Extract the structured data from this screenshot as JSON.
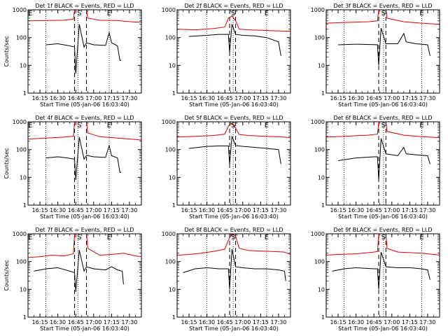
{
  "figure": {
    "background": "#ffffff",
    "axis_color": "#000000",
    "events_color": "#000000",
    "lld_color": "#e00000"
  },
  "chart_data": [
    {
      "type": "line",
      "title": "Det 1f BLACK = Events, RED = LLD",
      "xlabel": "Start Time (05-Jan-06 16:03:40)",
      "ylabel": "Counts/sec",
      "xlim": [
        "16:05",
        "17:40"
      ],
      "ylim": [
        1,
        1000
      ],
      "yscale": "log",
      "x_ticks": [
        "16:15",
        "16:30",
        "16:45",
        "17:00",
        "17:15",
        "17:30"
      ],
      "y_ticks": [
        "1",
        "10",
        "100",
        "1000"
      ],
      "markers": [
        {
          "label": "E",
          "time": "16:07"
        },
        {
          "label": "S",
          "time": "16:48"
        },
        {
          "label": "E",
          "time": "17:13"
        }
      ],
      "dotted_lines": [
        "16:20",
        "16:47",
        "17:13"
      ],
      "dashed_lines": [
        "16:44",
        "16:54"
      ],
      "series": [
        {
          "color": "#e00000",
          "x": [
            "16:05",
            "16:20",
            "16:35",
            "16:43",
            "16:44",
            "16:48",
            "16:54",
            "16:55",
            "17:05",
            "17:20",
            "17:35",
            "17:40"
          ],
          "y": [
            400,
            410,
            420,
            460,
            1000,
            1000,
            1000,
            500,
            420,
            410,
            360,
            360
          ]
        },
        {
          "color": "#000000",
          "x": [
            "16:20",
            "16:30",
            "16:38",
            "16:44",
            "16:45",
            "16:48",
            "16:52",
            "16:54",
            "17:00",
            "17:10",
            "17:13",
            "17:15",
            "17:20",
            "17:22",
            "17:23"
          ],
          "y": [
            55,
            60,
            52,
            46,
            5,
            300,
            45,
            65,
            55,
            52,
            150,
            65,
            50,
            15,
            15
          ]
        }
      ]
    },
    {
      "type": "line",
      "title": "Det 2f BLACK = Events, RED = LLD",
      "xlabel": "Start Time (05-Jan-06 16:03:40)",
      "ylabel": "",
      "xlim": [
        "16:05",
        "17:40"
      ],
      "ylim": [
        1,
        1000
      ],
      "yscale": "log",
      "x_ticks": [
        "16:15",
        "16:30",
        "16:45",
        "17:00",
        "17:15",
        "17:30"
      ],
      "y_ticks": [
        "1",
        "10",
        "100",
        "1000"
      ],
      "markers": [
        {
          "label": "S",
          "time": "16:52"
        },
        {
          "label": "E",
          "time": "17:20"
        }
      ],
      "dotted_lines": [
        "16:30",
        "16:52",
        "17:20"
      ],
      "dashed_lines": [
        "16:49",
        "16:54"
      ],
      "series": [
        {
          "color": "#e00000",
          "x": [
            "16:05",
            "16:20",
            "16:35",
            "16:45",
            "16:48",
            "16:51",
            "16:54",
            "16:57",
            "17:05",
            "17:20",
            "17:35",
            "17:40"
          ],
          "y": [
            200,
            190,
            210,
            240,
            500,
            600,
            400,
            200,
            190,
            180,
            170,
            170
          ]
        },
        {
          "color": "#000000",
          "x": [
            "16:15",
            "16:30",
            "16:40",
            "16:48",
            "16:49",
            "16:51",
            "16:54",
            "17:00",
            "17:10",
            "17:20",
            "17:30",
            "17:32"
          ],
          "y": [
            110,
            120,
            130,
            130,
            30,
            300,
            130,
            120,
            115,
            100,
            70,
            22
          ]
        }
      ]
    },
    {
      "type": "line",
      "title": "Det 3f BLACK = Events, RED = LLD",
      "xlabel": "Start Time (05-Jan-06 16:03:40)",
      "ylabel": "",
      "xlim": [
        "16:05",
        "17:40"
      ],
      "ylim": [
        1,
        1000
      ],
      "yscale": "log",
      "x_ticks": [
        "16:15",
        "16:30",
        "16:45",
        "17:00",
        "17:15",
        "17:30"
      ],
      "y_ticks": [
        "1",
        "10",
        "100",
        "1000"
      ],
      "markers": [
        {
          "label": "S",
          "time": "16:53"
        },
        {
          "label": "E",
          "time": "17:25"
        }
      ],
      "dotted_lines": [
        "16:20",
        "16:53",
        "17:25"
      ],
      "dashed_lines": [
        "16:49",
        "16:55"
      ],
      "series": [
        {
          "color": "#e00000",
          "x": [
            "16:05",
            "16:20",
            "16:40",
            "16:48",
            "16:49",
            "16:53",
            "16:55",
            "16:56",
            "17:10",
            "17:25",
            "17:40"
          ],
          "y": [
            330,
            350,
            370,
            400,
            1000,
            1000,
            1000,
            500,
            370,
            330,
            300
          ]
        },
        {
          "color": "#000000",
          "x": [
            "16:15",
            "16:30",
            "16:45",
            "16:48",
            "16:49",
            "16:51",
            "16:55",
            "17:05",
            "17:10",
            "17:12",
            "17:20",
            "17:30",
            "17:32"
          ],
          "y": [
            55,
            58,
            56,
            55,
            10,
            220,
            60,
            60,
            140,
            70,
            60,
            55,
            22
          ]
        }
      ]
    },
    {
      "type": "line",
      "title": "Det 4f BLACK = Events, RED = LLD",
      "xlabel": "Start Time (05-Jan-06 16:03:40)",
      "ylabel": "Counts/sec",
      "xlim": [
        "16:05",
        "17:40"
      ],
      "ylim": [
        1,
        1000
      ],
      "yscale": "log",
      "x_ticks": [
        "16:15",
        "16:30",
        "16:45",
        "17:00",
        "17:15",
        "17:30"
      ],
      "y_ticks": [
        "1",
        "10",
        "100",
        "1000"
      ],
      "markers": [
        {
          "label": "E",
          "time": "16:07"
        },
        {
          "label": "S",
          "time": "16:48"
        },
        {
          "label": "E",
          "time": "17:13"
        }
      ],
      "dotted_lines": [
        "16:20",
        "16:47",
        "17:13"
      ],
      "dashed_lines": [
        "16:44",
        "16:54"
      ],
      "series": [
        {
          "color": "#e00000",
          "x": [
            "16:05",
            "16:20",
            "16:35",
            "16:43",
            "16:44",
            "16:48",
            "16:54",
            "16:55",
            "17:05",
            "17:20",
            "17:35",
            "17:40"
          ],
          "y": [
            240,
            260,
            280,
            300,
            1000,
            1000,
            1000,
            400,
            290,
            260,
            230,
            220
          ]
        },
        {
          "color": "#000000",
          "x": [
            "16:20",
            "16:30",
            "16:38",
            "16:44",
            "16:45",
            "16:48",
            "16:52",
            "16:54",
            "17:00",
            "17:10",
            "17:13",
            "17:15",
            "17:20",
            "17:22",
            "17:23"
          ],
          "y": [
            50,
            55,
            50,
            45,
            8,
            280,
            45,
            62,
            55,
            52,
            140,
            60,
            50,
            15,
            15
          ]
        }
      ]
    },
    {
      "type": "line",
      "title": "Det 5f BLACK = Events, RED = LLD",
      "xlabel": "Start Time (05-Jan-06 16:03:40)",
      "ylabel": "",
      "xlim": [
        "16:05",
        "17:40"
      ],
      "ylim": [
        1,
        1000
      ],
      "yscale": "log",
      "x_ticks": [
        "16:15",
        "16:30",
        "16:45",
        "17:00",
        "17:15",
        "17:30"
      ],
      "y_ticks": [
        "1",
        "10",
        "100",
        "1000"
      ],
      "markers": [
        {
          "label": "S",
          "time": "16:52"
        },
        {
          "label": "E",
          "time": "17:20"
        }
      ],
      "dotted_lines": [
        "16:30",
        "16:52",
        "17:20"
      ],
      "dashed_lines": [
        "16:49",
        "16:54"
      ],
      "series": [
        {
          "color": "#e00000",
          "x": [
            "16:05",
            "16:20",
            "16:35",
            "16:45",
            "16:48",
            "16:51",
            "16:54",
            "16:57",
            "17:05",
            "17:20",
            "17:35",
            "17:40"
          ],
          "y": [
            280,
            300,
            320,
            360,
            700,
            900,
            600,
            350,
            320,
            300,
            280,
            270
          ]
        },
        {
          "color": "#000000",
          "x": [
            "16:15",
            "16:30",
            "16:40",
            "16:48",
            "16:49",
            "16:51",
            "16:54",
            "17:00",
            "17:10",
            "17:20",
            "17:30",
            "17:32"
          ],
          "y": [
            110,
            130,
            135,
            135,
            30,
            300,
            140,
            130,
            120,
            110,
            100,
            30
          ]
        }
      ]
    },
    {
      "type": "line",
      "title": "Det 6f BLACK = Events, RED = LLD",
      "xlabel": "Start Time (05-Jan-06 16:03:40)",
      "ylabel": "",
      "xlim": [
        "16:05",
        "17:40"
      ],
      "ylim": [
        1,
        1000
      ],
      "yscale": "log",
      "x_ticks": [
        "16:15",
        "16:30",
        "16:45",
        "17:00",
        "17:15",
        "17:30"
      ],
      "y_ticks": [
        "1",
        "10",
        "100",
        "1000"
      ],
      "markers": [
        {
          "label": "S",
          "time": "16:53"
        },
        {
          "label": "E",
          "time": "17:25"
        }
      ],
      "dotted_lines": [
        "16:20",
        "16:53",
        "17:25"
      ],
      "dashed_lines": [
        "16:49",
        "16:55"
      ],
      "series": [
        {
          "color": "#e00000",
          "x": [
            "16:05",
            "16:20",
            "16:40",
            "16:48",
            "16:49",
            "16:53",
            "16:55",
            "16:56",
            "17:10",
            "17:25",
            "17:40"
          ],
          "y": [
            280,
            300,
            330,
            360,
            1000,
            1000,
            1000,
            450,
            330,
            290,
            270
          ]
        },
        {
          "color": "#000000",
          "x": [
            "16:15",
            "16:30",
            "16:45",
            "16:48",
            "16:49",
            "16:51",
            "16:55",
            "17:05",
            "17:10",
            "17:12",
            "17:20",
            "17:30",
            "17:32"
          ],
          "y": [
            40,
            50,
            55,
            55,
            8,
            250,
            70,
            60,
            120,
            70,
            65,
            60,
            30
          ]
        }
      ]
    },
    {
      "type": "line",
      "title": "Det 7f BLACK = Events, RED = LLD",
      "xlabel": "Start Time (05-Jan-06 16:03:40)",
      "ylabel": "Counts/sec",
      "xlim": [
        "16:05",
        "17:40"
      ],
      "ylim": [
        1,
        1000
      ],
      "yscale": "log",
      "x_ticks": [
        "16:15",
        "16:30",
        "16:45",
        "17:00",
        "17:15",
        "17:30"
      ],
      "y_ticks": [
        "1",
        "10",
        "100",
        "1000"
      ],
      "markers": [
        {
          "label": "E",
          "time": "16:07"
        },
        {
          "label": "S",
          "time": "16:48"
        },
        {
          "label": "E",
          "time": "17:13"
        }
      ],
      "dotted_lines": [
        "16:20",
        "16:47",
        "17:13"
      ],
      "dashed_lines": [
        "16:44",
        "16:54"
      ],
      "series": [
        {
          "color": "#e00000",
          "x": [
            "16:05",
            "16:15",
            "16:25",
            "16:35",
            "16:43",
            "16:44",
            "16:48",
            "16:54",
            "16:55",
            "17:05",
            "17:15",
            "17:25",
            "17:35",
            "17:40"
          ],
          "y": [
            140,
            150,
            170,
            160,
            190,
            1000,
            1000,
            1000,
            300,
            170,
            180,
            200,
            160,
            150
          ]
        },
        {
          "color": "#000000",
          "x": [
            "16:10",
            "16:20",
            "16:30",
            "16:38",
            "16:44",
            "16:45",
            "16:48",
            "16:52",
            "16:54",
            "17:00",
            "17:10",
            "17:15",
            "17:20",
            "17:24",
            "17:25"
          ],
          "y": [
            45,
            55,
            60,
            48,
            40,
            8,
            260,
            45,
            65,
            55,
            50,
            65,
            50,
            45,
            15
          ]
        }
      ]
    },
    {
      "type": "line",
      "title": "Det 8f BLACK = Events, RED = LLD",
      "xlabel": "Start Time (05-Jan-06 16:03:40)",
      "ylabel": "",
      "xlim": [
        "16:05",
        "17:40"
      ],
      "ylim": [
        1,
        1000
      ],
      "yscale": "log",
      "x_ticks": [
        "16:15",
        "16:30",
        "16:45",
        "17:00",
        "17:15",
        "17:30"
      ],
      "y_ticks": [
        "1",
        "10",
        "100",
        "1000"
      ],
      "markers": [
        {
          "label": "S",
          "time": "16:52"
        },
        {
          "label": "E",
          "time": "17:20"
        }
      ],
      "dotted_lines": [
        "16:30",
        "16:52",
        "17:20"
      ],
      "dashed_lines": [
        "16:49",
        "16:54"
      ],
      "series": [
        {
          "color": "#e00000",
          "x": [
            "16:05",
            "16:15",
            "16:25",
            "16:35",
            "16:45",
            "16:48",
            "16:51",
            "16:54",
            "16:57",
            "17:05",
            "17:15",
            "17:25",
            "17:35",
            "17:40"
          ],
          "y": [
            170,
            180,
            200,
            230,
            280,
            600,
            1000,
            800,
            300,
            250,
            240,
            230,
            220,
            180
          ]
        },
        {
          "color": "#000000",
          "x": [
            "16:10",
            "16:20",
            "16:30",
            "16:40",
            "16:48",
            "16:49",
            "16:51",
            "16:54",
            "17:00",
            "17:10",
            "17:20",
            "17:30",
            "17:35",
            "17:36"
          ],
          "y": [
            40,
            55,
            60,
            55,
            55,
            10,
            280,
            65,
            60,
            55,
            55,
            50,
            45,
            20
          ]
        }
      ]
    },
    {
      "type": "line",
      "title": "Det 9f BLACK = Events, RED = LLD",
      "xlabel": "Start Time (05-Jan-06 16:03:40)",
      "ylabel": "",
      "xlim": [
        "16:05",
        "17:40"
      ],
      "ylim": [
        1,
        1000
      ],
      "yscale": "log",
      "x_ticks": [
        "16:15",
        "16:30",
        "16:45",
        "17:00",
        "17:15",
        "17:30"
      ],
      "y_ticks": [
        "1",
        "10",
        "100",
        "1000"
      ],
      "markers": [
        {
          "label": "S",
          "time": "16:53"
        },
        {
          "label": "E",
          "time": "17:25"
        }
      ],
      "dotted_lines": [
        "16:20",
        "16:53",
        "17:25"
      ],
      "dashed_lines": [
        "16:49",
        "16:55"
      ],
      "series": [
        {
          "color": "#e00000",
          "x": [
            "16:05",
            "16:15",
            "16:30",
            "16:45",
            "16:48",
            "16:49",
            "16:53",
            "16:55",
            "16:56",
            "17:05",
            "17:15",
            "17:25",
            "17:35",
            "17:40"
          ],
          "y": [
            170,
            180,
            190,
            220,
            230,
            1000,
            1000,
            1000,
            300,
            220,
            210,
            200,
            180,
            170
          ]
        },
        {
          "color": "#000000",
          "x": [
            "16:10",
            "16:20",
            "16:30",
            "16:45",
            "16:48",
            "16:49",
            "16:51",
            "16:55",
            "17:05",
            "17:15",
            "17:25",
            "17:30",
            "17:32"
          ],
          "y": [
            45,
            55,
            60,
            55,
            55,
            10,
            220,
            65,
            60,
            60,
            55,
            50,
            22
          ]
        }
      ]
    }
  ]
}
